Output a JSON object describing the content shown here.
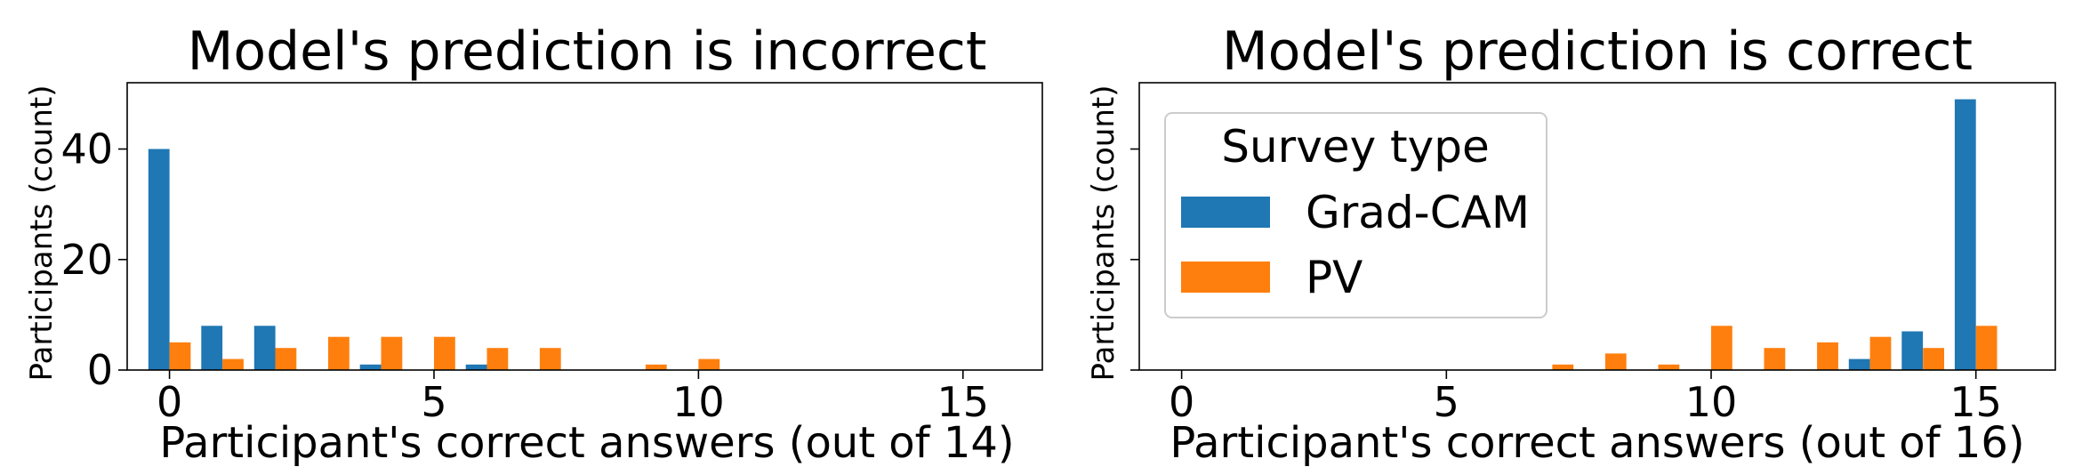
{
  "colors": {
    "Grad-CAM": "#1f77b4",
    "PV": "#ff7f0e"
  },
  "legend": {
    "title": "Survey type",
    "placement": "upper-left",
    "entries": [
      "Grad-CAM",
      "PV"
    ]
  },
  "chart_data": [
    {
      "type": "bar",
      "title": "Model's prediction is incorrect",
      "xlabel": "Participant's correct answers (out of 14)",
      "ylabel": "Participants (count)",
      "xlim": [
        -0.8,
        16.5
      ],
      "ylim": [
        0,
        52
      ],
      "xticks": [
        0,
        5,
        10,
        15
      ],
      "yticks": [
        0,
        20,
        40
      ],
      "show_ytick_labels": true,
      "grid": false,
      "series": [
        {
          "name": "Grad-CAM",
          "x": [
            0,
            1,
            2,
            3,
            4,
            5,
            6,
            7,
            8,
            9,
            10
          ],
          "values": [
            40,
            8,
            8,
            0,
            1,
            0,
            1,
            0,
            0,
            0,
            0
          ]
        },
        {
          "name": "PV",
          "x": [
            0,
            1,
            2,
            3,
            4,
            5,
            6,
            7,
            8,
            9,
            10
          ],
          "values": [
            5,
            2,
            4,
            6,
            6,
            6,
            4,
            4,
            0,
            1,
            2
          ]
        }
      ]
    },
    {
      "type": "bar",
      "title": "Model's prediction is correct",
      "xlabel": "Participant's correct answers (out of 16)",
      "ylabel": "Participants (count)",
      "xlim": [
        -0.8,
        16.5
      ],
      "ylim": [
        0,
        52
      ],
      "xticks": [
        0,
        5,
        10,
        15
      ],
      "yticks": [
        0,
        20,
        40
      ],
      "show_ytick_labels": false,
      "grid": false,
      "series": [
        {
          "name": "Grad-CAM",
          "x": [
            7,
            8,
            9,
            10,
            11,
            12,
            13,
            14,
            15
          ],
          "values": [
            0,
            0,
            0,
            0,
            0,
            0,
            2,
            7,
            49
          ]
        },
        {
          "name": "PV",
          "x": [
            7,
            8,
            9,
            10,
            11,
            12,
            13,
            14,
            15
          ],
          "values": [
            1,
            3,
            1,
            8,
            4,
            5,
            6,
            4,
            8
          ]
        }
      ]
    }
  ]
}
